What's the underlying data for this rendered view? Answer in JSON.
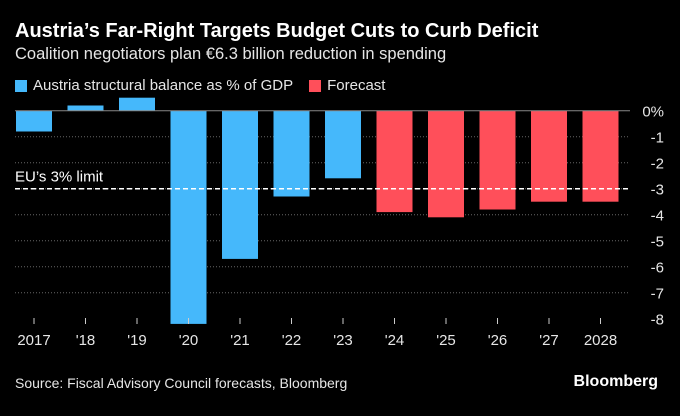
{
  "title": "Austria’s Far-Right Targets Budget Cuts to Curb Deficit",
  "subtitle": "Coalition negotiators plan €6.3 billion reduction in spending",
  "source": "Source: Fiscal Advisory Council forecasts, Bloomberg",
  "brand": "Bloomberg",
  "colors": {
    "actual": "#45b8fb",
    "forecast": "#ff4f5a"
  },
  "chart_data": {
    "type": "bar",
    "categories": [
      "2017",
      "'18",
      "'19",
      "'20",
      "'21",
      "'22",
      "'23",
      "'24",
      "'25",
      "'26",
      "'27",
      "2028"
    ],
    "series": [
      {
        "name": "Austria structural balance as % of GDP",
        "values": [
          -0.8,
          0.2,
          0.5,
          -8.2,
          -5.7,
          -3.3,
          -2.6,
          null,
          null,
          null,
          null,
          null
        ]
      },
      {
        "name": "Forecast",
        "values": [
          null,
          null,
          null,
          null,
          null,
          null,
          null,
          -3.9,
          -4.1,
          -3.8,
          -3.5,
          -3.5
        ]
      }
    ],
    "ylim": [
      -8,
      0.6
    ],
    "yticks": [
      0,
      -1,
      -2,
      -3,
      -4,
      -5,
      -6,
      -7,
      -8
    ],
    "ytick_labels": [
      "0%",
      "-1",
      "-2",
      "-3",
      "-4",
      "-5",
      "-6",
      "-7",
      "-8"
    ],
    "annotation": {
      "text": "EU’s 3% limit",
      "y": -3
    },
    "legend": "top-left",
    "grid": true
  }
}
